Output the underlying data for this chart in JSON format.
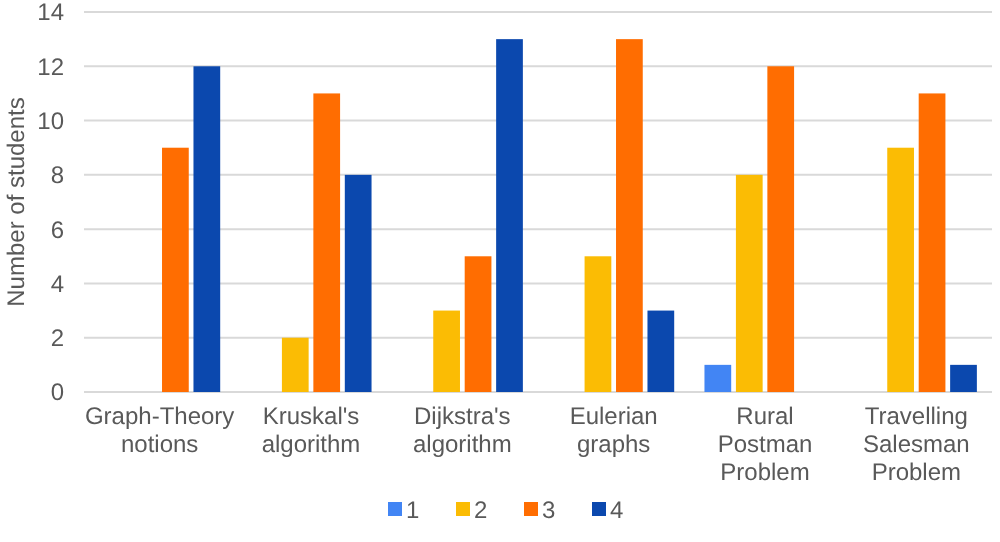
{
  "chart_data": {
    "type": "bar",
    "ylabel": "Number of students",
    "categories": [
      "Graph-Theory notions",
      "Kruskal's algorithm",
      "Dijkstra's algorithm",
      "Eulerian graphs",
      "Rural Postman Problem",
      "Travelling Salesman Problem"
    ],
    "series": [
      {
        "name": "1",
        "color": "#4285f4",
        "values": [
          0,
          0,
          0,
          0,
          1,
          0
        ]
      },
      {
        "name": "2",
        "color": "#fbbc04",
        "values": [
          0,
          2,
          3,
          5,
          8,
          9
        ]
      },
      {
        "name": "3",
        "color": "#ff6d01",
        "values": [
          9,
          11,
          5,
          13,
          12,
          11
        ]
      },
      {
        "name": "4",
        "color": "#0b48ae",
        "values": [
          12,
          8,
          13,
          3,
          0,
          1
        ]
      }
    ],
    "ylim": [
      0,
      14
    ],
    "yticks": [
      0,
      2,
      4,
      6,
      8,
      10,
      12,
      14
    ],
    "grid": "y",
    "legend": "bottom"
  }
}
